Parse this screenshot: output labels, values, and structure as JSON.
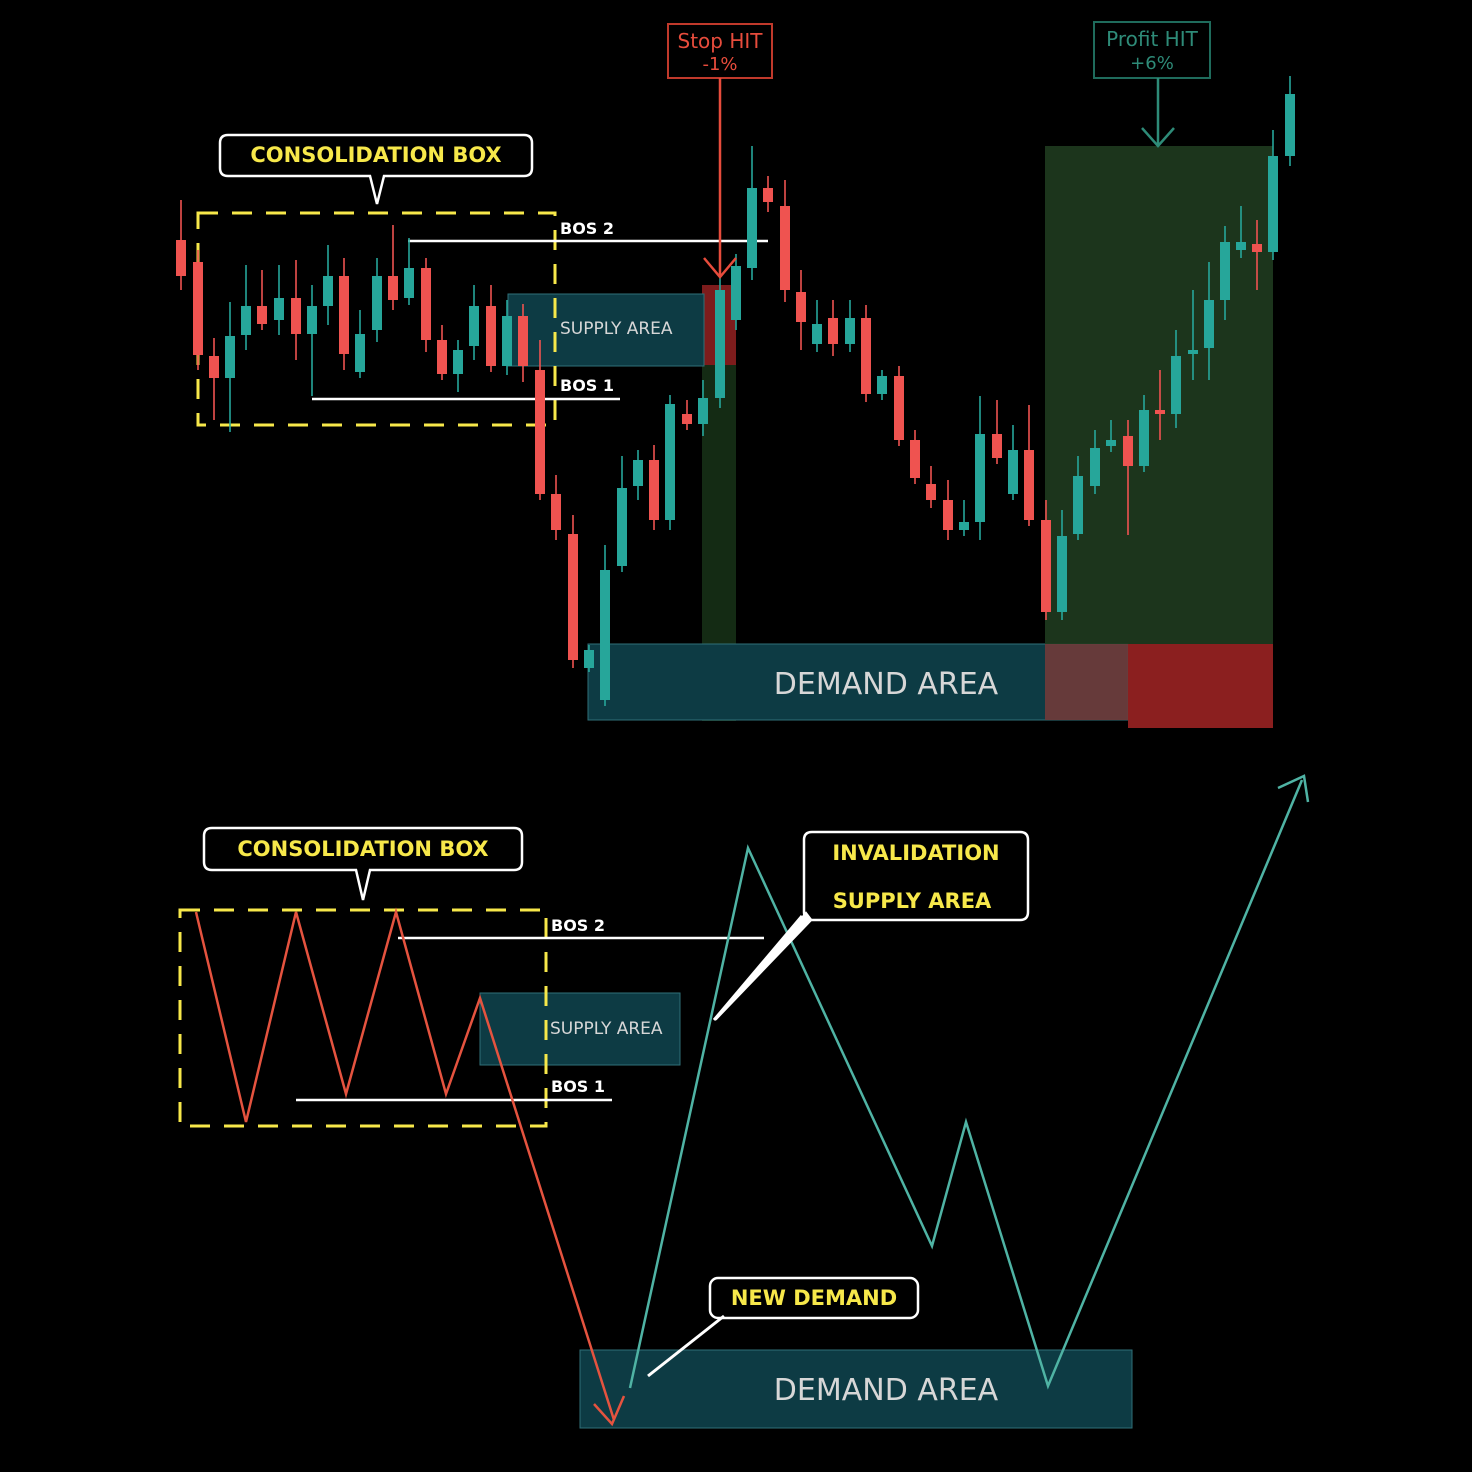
{
  "labels": {
    "consolidation_top": "CONSOLIDATION BOX",
    "consolidation_bottom": "CONSOLIDATION BOX",
    "bos2_top": "BOS 2",
    "bos1_top": "BOS 1",
    "bos2_bottom": "BOS 2",
    "bos1_bottom": "BOS 1",
    "supply_top": "SUPPLY AREA",
    "supply_bottom": "SUPPLY AREA",
    "demand_top": "DEMAND AREA",
    "demand_bottom": "DEMAND AREA",
    "stop_line1": "Stop HIT",
    "stop_line2": "-1%",
    "profit_line1": "Profit HIT",
    "profit_line2": "+6%",
    "invalidation_line1": "INVALIDATION",
    "invalidation_line2": "SUPPLY AREA",
    "new_demand": "NEW DEMAND"
  },
  "colors": {
    "bull": "#26a69a",
    "bear": "#ef5350",
    "callout_text": "#f7e84a",
    "zone_fill": "#0d3b44",
    "tp_zone": "#1e3a1e",
    "sl_zone": "#8b1f1f",
    "stop_label": "#e74c3c",
    "profit_label": "#2e8b78"
  }
}
